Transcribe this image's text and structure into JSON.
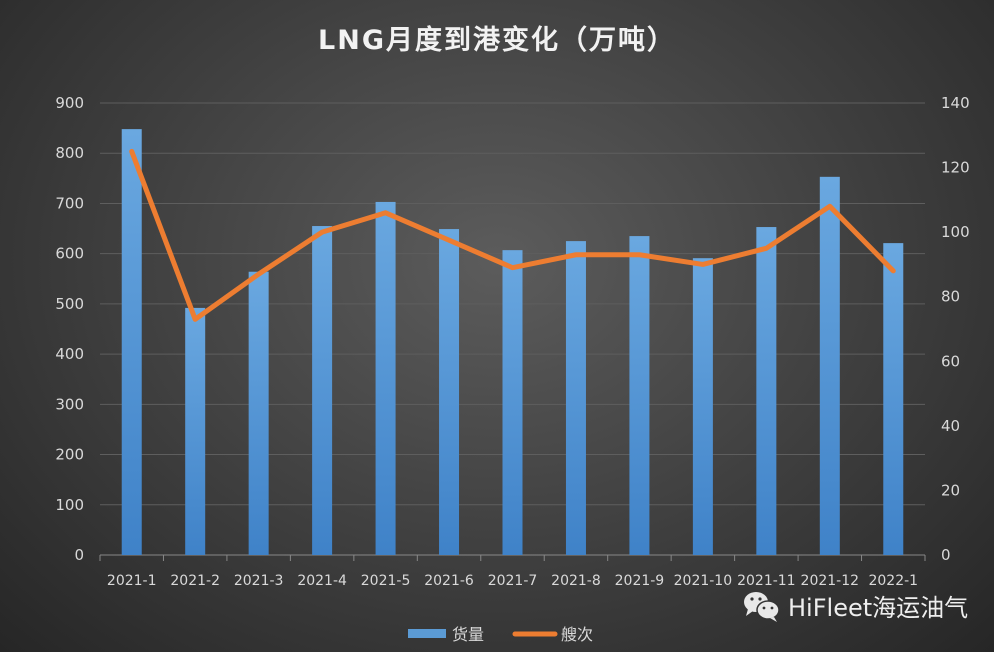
{
  "chart_data": {
    "type": "bar+line",
    "title": "LNG月度到港变化（万吨）",
    "categories": [
      "2021-1",
      "2021-2",
      "2021-3",
      "2021-4",
      "2021-5",
      "2021-6",
      "2021-7",
      "2021-8",
      "2021-9",
      "2021-10",
      "2021-11",
      "2021-12",
      "2022-1"
    ],
    "series": [
      {
        "name": "货量",
        "type": "bar",
        "axis": "left",
        "color": "#5b9bd5",
        "values": [
          848,
          492,
          564,
          655,
          703,
          649,
          607,
          625,
          635,
          591,
          653,
          753,
          621
        ]
      },
      {
        "name": "艘次",
        "type": "line",
        "axis": "right",
        "color": "#ed7d31",
        "values": [
          125,
          73,
          87,
          100,
          106,
          97.5,
          89,
          93,
          93,
          90,
          95,
          108,
          88
        ]
      }
    ],
    "y_left": {
      "min": 0,
      "max": 900,
      "ticks": [
        "0",
        "100",
        "200",
        "300",
        "400",
        "500",
        "600",
        "700",
        "800",
        "900"
      ]
    },
    "y_right": {
      "min": 0,
      "max": 140,
      "ticks": [
        "0",
        "20",
        "40",
        "60",
        "80",
        "100",
        "120",
        "140"
      ]
    },
    "grid": true,
    "legend": "bottom"
  },
  "watermark": "HiFleet海运油气"
}
